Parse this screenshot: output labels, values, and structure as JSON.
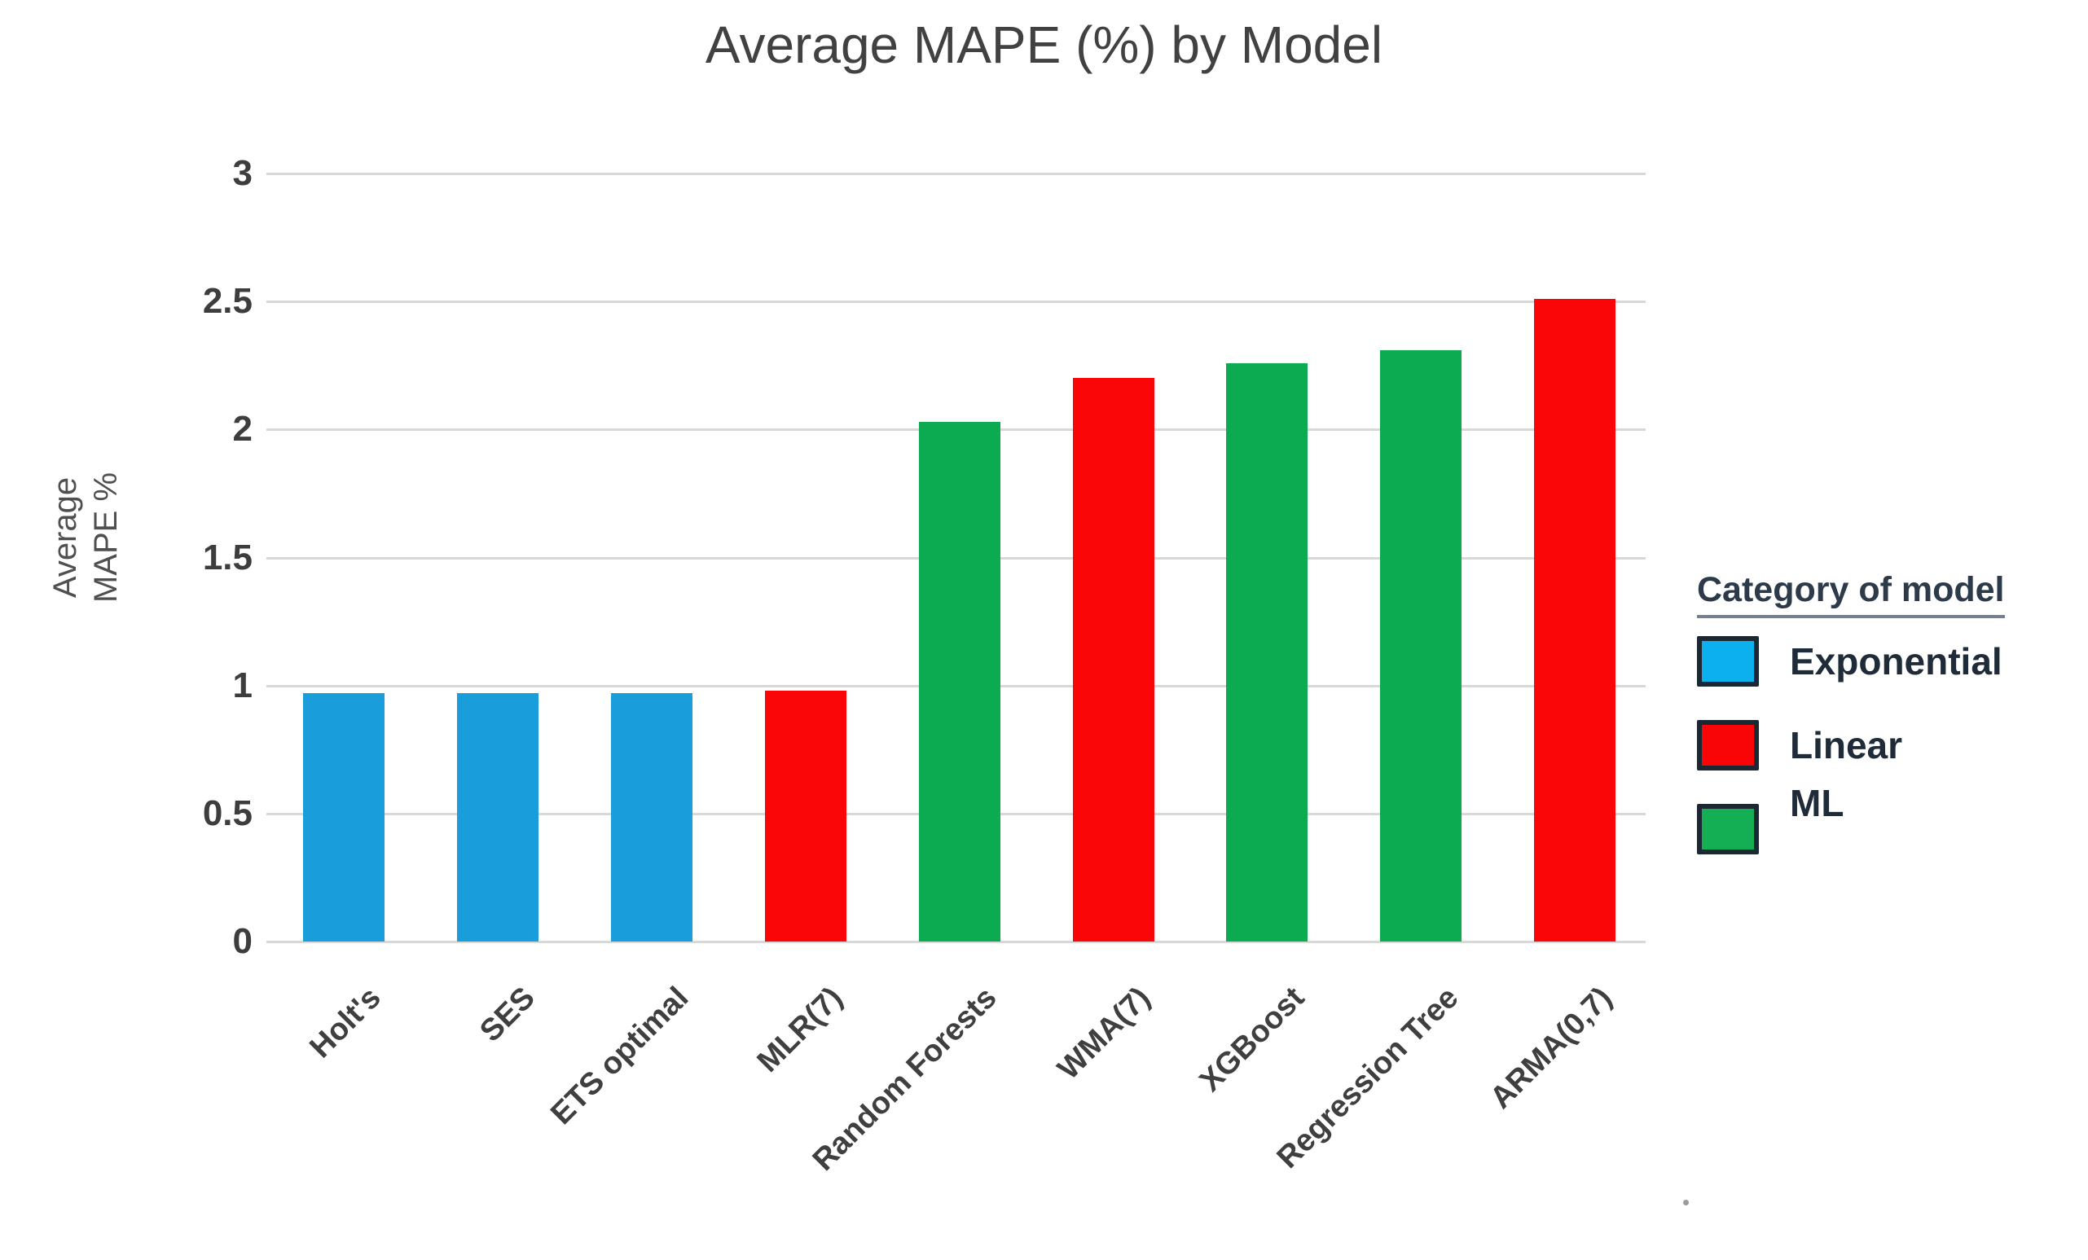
{
  "chart_data": {
    "type": "bar",
    "title": "Average MAPE (%) by Model",
    "ylabel": "Average\nMAPE %",
    "xlabel": "",
    "categories": [
      "Holt's",
      "SES",
      "ETS optimal",
      "MLR(7)",
      "Random Forests",
      "WMA(7)",
      "XGBoost",
      "Regression Tree",
      "ARMA(0,7)"
    ],
    "values": [
      0.97,
      0.97,
      0.97,
      0.98,
      2.03,
      2.2,
      2.26,
      2.31,
      2.51
    ],
    "category_groups": [
      "Exponential",
      "Exponential",
      "Exponential",
      "Linear",
      "ML",
      "Linear",
      "ML",
      "ML",
      "Linear"
    ],
    "ylim": [
      0,
      3
    ],
    "yticks": [
      3,
      2.5,
      2,
      1.5,
      1,
      0.5,
      0
    ],
    "ytick_labels": [
      "3",
      "2.5",
      "2",
      "1.5",
      "1",
      "0.5",
      "0"
    ],
    "grid": "horizontal",
    "legend": {
      "title": "Category of model",
      "position": "right",
      "entries": [
        {
          "label": "Exponential",
          "swatch_color": "#0cb0ee",
          "bar_color": "#1a9ddb"
        },
        {
          "label": "Linear",
          "swatch_color": "#fa0507",
          "bar_color": "#fb0606"
        },
        {
          "label": "ML",
          "swatch_color": "#14ae55",
          "bar_color": "#0cab51"
        }
      ],
      "swatch_border_color": "#1b2733"
    },
    "colors": {
      "grid": "#d8d8d8",
      "title_text": "#414141",
      "tick_text": "#3d3d3d",
      "axis_label_text": "#4f4f4f",
      "legend_text": "#1f2b38",
      "legend_underline": "#75808c"
    }
  }
}
